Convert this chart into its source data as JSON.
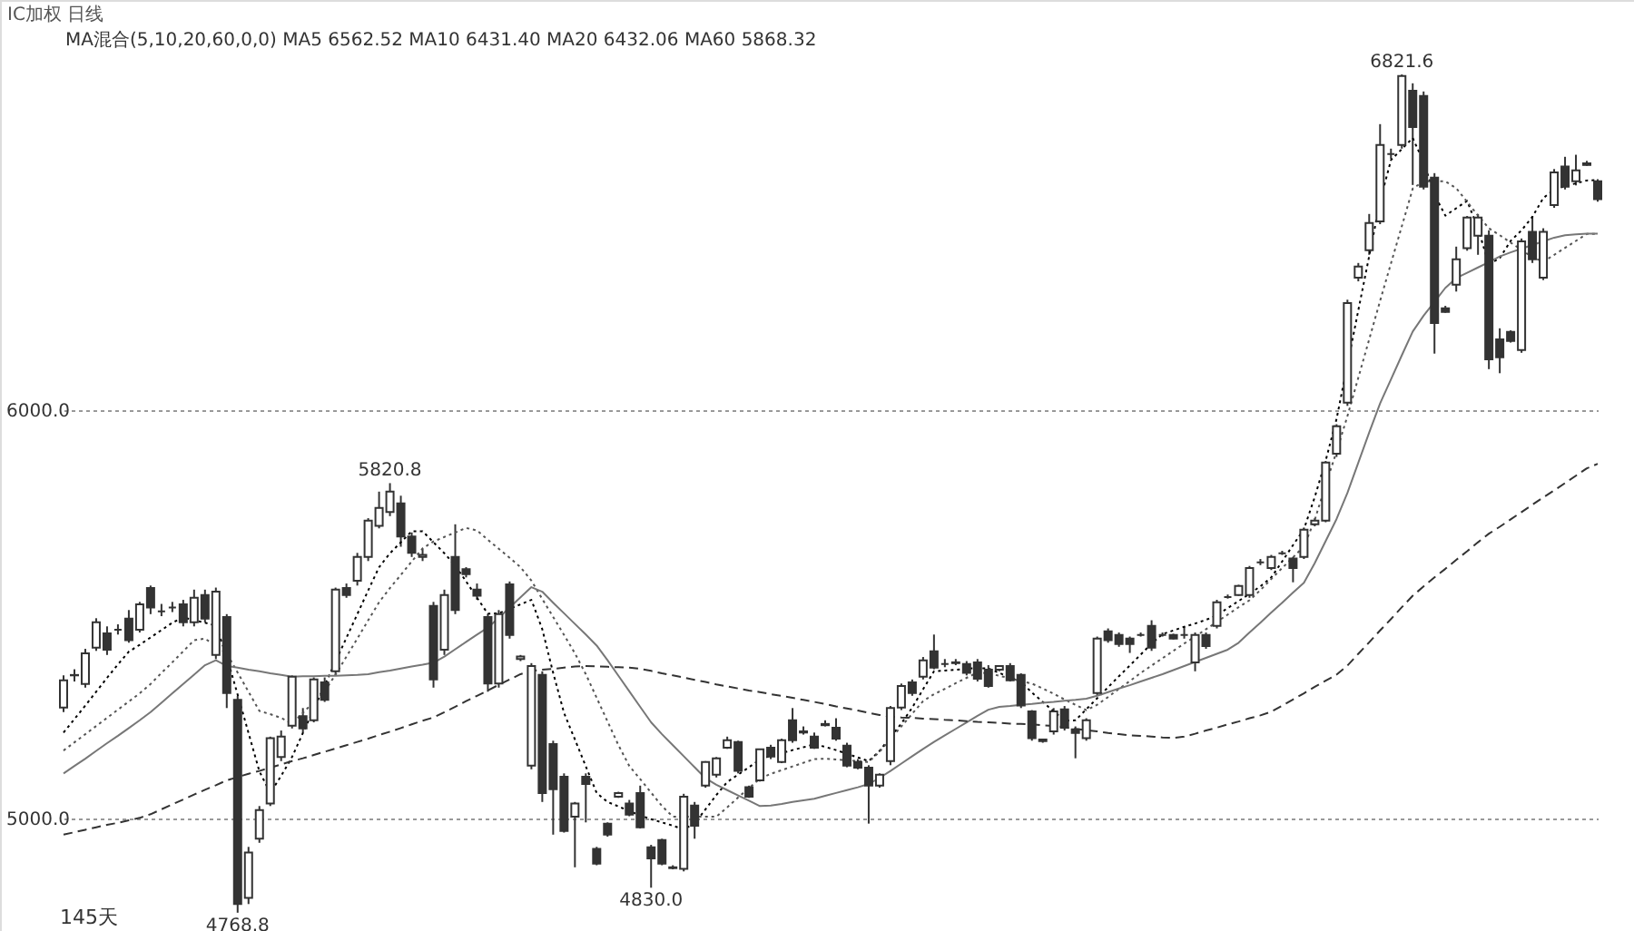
{
  "chart_data": {
    "type": "candlestick",
    "title": "IC加权 日线",
    "subtitle": "MA混合(5,10,20,60,0,0) MA5 6562.52 MA10 6431.40 MA20 6432.06 MA60 5868.32",
    "categories": [
      null,
      null,
      null,
      null,
      null,
      null,
      null,
      null,
      null,
      null,
      null,
      null,
      null,
      null,
      null,
      null,
      null,
      null,
      null,
      null,
      null,
      null,
      null,
      null,
      null,
      null,
      null,
      null,
      null,
      null,
      null,
      null,
      null,
      null,
      null,
      null,
      null,
      null,
      null,
      null,
      null,
      null,
      null,
      null,
      null,
      null,
      null,
      null,
      null,
      null,
      null,
      null,
      null,
      null,
      null,
      null,
      null,
      null,
      null,
      null,
      null,
      null,
      null,
      null,
      null,
      null,
      null,
      null,
      null,
      null,
      null,
      null,
      null,
      null,
      null,
      null,
      null,
      null,
      null,
      null,
      null,
      null,
      null,
      null,
      null,
      null,
      null,
      null,
      null,
      null,
      null,
      null,
      null,
      null,
      null,
      null,
      null,
      null,
      null,
      null,
      null,
      null,
      null,
      null,
      null,
      null,
      null,
      null,
      null,
      null,
      null,
      null,
      null,
      null,
      null,
      null,
      null,
      null,
      null,
      null,
      null,
      null,
      null,
      null,
      null,
      null,
      null,
      null,
      null,
      null,
      null,
      null,
      null,
      null,
      null,
      null,
      null,
      null,
      null,
      null,
      null,
      null
    ],
    "ohlc": [
      [
        5271,
        5350,
        5260,
        5338
      ],
      [
        5350,
        5365,
        5335,
        5351
      ],
      [
        5329,
        5415,
        5320,
        5404
      ],
      [
        5418,
        5490,
        5410,
        5480
      ],
      [
        5453,
        5470,
        5400,
        5413
      ],
      [
        5462,
        5475,
        5450,
        5462
      ],
      [
        5489,
        5510,
        5430,
        5436
      ],
      [
        5462,
        5530,
        5455,
        5524
      ],
      [
        5564,
        5570,
        5500,
        5516
      ],
      [
        5507,
        5525,
        5495,
        5507
      ],
      [
        5516,
        5530,
        5505,
        5516
      ],
      [
        5524,
        5535,
        5470,
        5480
      ],
      [
        5480,
        5560,
        5470,
        5540
      ],
      [
        5547,
        5560,
        5480,
        5489
      ],
      [
        5400,
        5565,
        5390,
        5555
      ],
      [
        5493,
        5500,
        5270,
        5307
      ],
      [
        5290,
        5300,
        4768.8,
        4790
      ],
      [
        4805,
        4930,
        4790,
        4916
      ],
      [
        4950,
        5030,
        4940,
        5020
      ],
      [
        5036,
        5200,
        5030,
        5196
      ],
      [
        5150,
        5215,
        5140,
        5200
      ],
      [
        5227,
        5350,
        5220,
        5347
      ],
      [
        5250,
        5270,
        5210,
        5220
      ],
      [
        5240,
        5345,
        5235,
        5340
      ],
      [
        5333,
        5345,
        5285,
        5290
      ],
      [
        5360,
        5565,
        5350,
        5560
      ],
      [
        5564,
        5575,
        5540,
        5547
      ],
      [
        5582,
        5650,
        5570,
        5640
      ],
      [
        5640,
        5735,
        5630,
        5729
      ],
      [
        5716,
        5800,
        5710,
        5760
      ],
      [
        5750,
        5820.8,
        5740,
        5800
      ],
      [
        5771,
        5790,
        5665,
        5690
      ],
      [
        5690,
        5700,
        5640,
        5650
      ],
      [
        5640,
        5660,
        5630,
        5645
      ],
      [
        5520,
        5530,
        5320,
        5340
      ],
      [
        5413,
        5560,
        5400,
        5547
      ],
      [
        5640,
        5720,
        5500,
        5510
      ],
      [
        5610,
        5615,
        5590,
        5598
      ],
      [
        5560,
        5575,
        5535,
        5545
      ],
      [
        5493,
        5500,
        5310,
        5330
      ],
      [
        5330,
        5510,
        5320,
        5500
      ],
      [
        5573,
        5580,
        5440,
        5449
      ],
      [
        5390,
        5400,
        5385,
        5396
      ],
      [
        5129,
        5380,
        5120,
        5373
      ],
      [
        5351,
        5360,
        5040,
        5062
      ],
      [
        5182,
        5190,
        4960,
        5071
      ],
      [
        5102,
        5110,
        4965,
        4969
      ],
      [
        5004,
        5040,
        4880,
        5036
      ],
      [
        5102,
        5110,
        4990,
        5084
      ],
      [
        4925,
        4930,
        4885,
        4889
      ],
      [
        4987,
        4990,
        4955,
        4960
      ],
      [
        5053,
        5065,
        5050,
        5062
      ],
      [
        5036,
        5045,
        5005,
        5009
      ],
      [
        5062,
        5080,
        4975,
        4978
      ],
      [
        4929,
        4935,
        4830.0,
        4902
      ],
      [
        4947,
        4950,
        4885,
        4889
      ],
      [
        4880,
        4885,
        4875,
        4878
      ],
      [
        4876,
        5060,
        4870,
        5053
      ],
      [
        5031,
        5040,
        4950,
        4982
      ],
      [
        5080,
        5140,
        5075,
        5138
      ],
      [
        5107,
        5150,
        5100,
        5147
      ],
      [
        5173,
        5200,
        5170,
        5191
      ],
      [
        5187,
        5190,
        5110,
        5116
      ],
      [
        5076,
        5080,
        5050,
        5053
      ],
      [
        5093,
        5170,
        5090,
        5169
      ],
      [
        5173,
        5180,
        5145,
        5151
      ],
      [
        5138,
        5195,
        5135,
        5191
      ],
      [
        5240,
        5270,
        5185,
        5191
      ],
      [
        5210,
        5225,
        5205,
        5213
      ],
      [
        5200,
        5210,
        5170,
        5173
      ],
      [
        5228,
        5240,
        5225,
        5231
      ],
      [
        5222,
        5245,
        5190,
        5195
      ],
      [
        5178,
        5185,
        5125,
        5129
      ],
      [
        5138,
        5145,
        5120,
        5124
      ],
      [
        5124,
        5130,
        4987,
        5080
      ],
      [
        5080,
        5110,
        5075,
        5107
      ],
      [
        5140,
        5275,
        5130,
        5270
      ],
      [
        5271,
        5330,
        5265,
        5324
      ],
      [
        5333,
        5340,
        5300,
        5307
      ],
      [
        5347,
        5395,
        5340,
        5387
      ],
      [
        5409,
        5450,
        5365,
        5369
      ],
      [
        5378,
        5390,
        5370,
        5378
      ],
      [
        5380,
        5390,
        5375,
        5382
      ],
      [
        5378,
        5385,
        5350,
        5356
      ],
      [
        5382,
        5390,
        5335,
        5342
      ],
      [
        5364,
        5375,
        5320,
        5324
      ],
      [
        5364,
        5375,
        5360,
        5373
      ],
      [
        5373,
        5380,
        5335,
        5338
      ],
      [
        5351,
        5355,
        5270,
        5276
      ],
      [
        5262,
        5265,
        5190,
        5196
      ],
      [
        5193,
        5195,
        5185,
        5189
      ],
      [
        5213,
        5270,
        5205,
        5262
      ],
      [
        5267,
        5275,
        5215,
        5222
      ],
      [
        5218,
        5225,
        5147,
        5209
      ],
      [
        5196,
        5245,
        5190,
        5240
      ],
      [
        5307,
        5445,
        5300,
        5440
      ],
      [
        5458,
        5465,
        5430,
        5436
      ],
      [
        5449,
        5455,
        5420,
        5427
      ],
      [
        5440,
        5445,
        5405,
        5427
      ],
      [
        5449,
        5455,
        5445,
        5449
      ],
      [
        5471,
        5485,
        5410,
        5418
      ],
      [
        5449,
        5455,
        5445,
        5449
      ],
      [
        5449,
        5452,
        5438,
        5440
      ],
      [
        5449,
        5470,
        5440,
        5449
      ],
      [
        5382,
        5455,
        5360,
        5449
      ],
      [
        5449,
        5455,
        5415,
        5422
      ],
      [
        5471,
        5535,
        5465,
        5529
      ],
      [
        5542,
        5548,
        5538,
        5542
      ],
      [
        5547,
        5572,
        5545,
        5569
      ],
      [
        5547,
        5618,
        5540,
        5613
      ],
      [
        5627,
        5635,
        5620,
        5627
      ],
      [
        5613,
        5645,
        5608,
        5640
      ],
      [
        5649,
        5655,
        5645,
        5649
      ],
      [
        5636,
        5640,
        5578,
        5613
      ],
      [
        5640,
        5712,
        5635,
        5707
      ],
      [
        5720,
        5735,
        5715,
        5729
      ],
      [
        5729,
        5875,
        5725,
        5871
      ],
      [
        5893,
        5965,
        5885,
        5960
      ],
      [
        6018,
        6270,
        6010,
        6262
      ],
      [
        6324,
        6360,
        6315,
        6351
      ],
      [
        6391,
        6480,
        6380,
        6458
      ],
      [
        6462,
        6700,
        6455,
        6649
      ],
      [
        6627,
        6640,
        6615,
        6627
      ],
      [
        6649,
        6821.6,
        6640,
        6818
      ],
      [
        6782,
        6800,
        6551,
        6693
      ],
      [
        6769,
        6780,
        6540,
        6547
      ],
      [
        6569,
        6580,
        6138,
        6213
      ],
      [
        6249,
        6255,
        6238,
        6240
      ],
      [
        6307,
        6400,
        6290,
        6369
      ],
      [
        6396,
        6475,
        6390,
        6471
      ],
      [
        6427,
        6480,
        6380,
        6471
      ],
      [
        6427,
        6440,
        6100,
        6124
      ],
      [
        6173,
        6200,
        6090,
        6129
      ],
      [
        6191,
        6195,
        6165,
        6169
      ],
      [
        6147,
        6420,
        6140,
        6413
      ],
      [
        6436,
        6475,
        6360,
        6369
      ],
      [
        6324,
        6445,
        6318,
        6436
      ],
      [
        6502,
        6590,
        6495,
        6582
      ],
      [
        6596,
        6620,
        6540,
        6547
      ],
      [
        6560,
        6625,
        6550,
        6587
      ],
      [
        6604,
        6610,
        6598,
        6600
      ],
      [
        6560,
        6565,
        6510,
        6516
      ]
    ],
    "color": "#333333",
    "series": [
      {
        "type": "line",
        "color": "#000000",
        "line_style": "dotted",
        "values": [
          5210,
          5243,
          5276,
          5310,
          5344,
          5377,
          5408,
          5425,
          5443,
          5461,
          5479,
          5492,
          5485,
          5479,
          5472,
          5396,
          5303,
          5209,
          5115,
          5062,
          5104,
          5150,
          5209,
          5267,
          5326,
          5384,
          5442,
          5500,
          5558,
          5615,
          5649,
          5676,
          5703,
          5703,
          5676,
          5649,
          5619,
          5580,
          5540,
          5501,
          5502,
          5513,
          5524,
          5535,
          5463,
          5356,
          5258,
          5193,
          5127,
          5062,
          5040,
          5029,
          5018,
          5007,
          4998,
          4990,
          4982,
          4973,
          4987,
          5022,
          5057,
          5089,
          5107,
          5125,
          5144,
          5153,
          5160,
          5167,
          5174,
          5181,
          5175,
          5167,
          5158,
          5149,
          5140,
          5165,
          5199,
          5232,
          5271,
          5316,
          5360,
          5362,
          5364,
          5366,
          5368,
          5367,
          5356,
          5345,
          5334,
          5308,
          5285,
          5262,
          5239,
          5240,
          5267,
          5294,
          5321,
          5348,
          5374,
          5401,
          5428,
          5451,
          5460,
          5469,
          5477,
          5486,
          5497,
          5515,
          5532,
          5550,
          5568,
          5590,
          5629,
          5669,
          5708,
          5787,
          5876,
          5978,
          6111,
          6244,
          6377,
          6511,
          6612,
          6639,
          6666,
          6607,
          6527,
          6476,
          6494,
          6512,
          6445,
          6356,
          6372,
          6414,
          6440,
          6473,
          6519,
          6540,
          6548,
          6555,
          6562,
          6563
        ]
      },
      {
        "type": "line",
        "color": "#555555",
        "line_style": "dotted",
        "values": [
          5166,
          5186,
          5206,
          5226,
          5246,
          5266,
          5286,
          5306,
          5329,
          5356,
          5382,
          5409,
          5436,
          5440,
          5422,
          5404,
          5357,
          5310,
          5263,
          5255,
          5246,
          5232,
          5258,
          5285,
          5311,
          5352,
          5396,
          5440,
          5485,
          5529,
          5564,
          5596,
          5629,
          5661,
          5678,
          5689,
          5700,
          5711,
          5705,
          5682,
          5660,
          5638,
          5615,
          5582,
          5537,
          5493,
          5449,
          5404,
          5353,
          5295,
          5237,
          5179,
          5128,
          5096,
          5063,
          5030,
          5004,
          5004,
          5004,
          5004,
          5004,
          5027,
          5051,
          5074,
          5097,
          5109,
          5118,
          5127,
          5136,
          5145,
          5146,
          5144,
          5142,
          5140,
          5138,
          5163,
          5194,
          5225,
          5256,
          5287,
          5304,
          5317,
          5331,
          5344,
          5357,
          5355,
          5349,
          5343,
          5336,
          5330,
          5318,
          5305,
          5291,
          5278,
          5265,
          5278,
          5297,
          5317,
          5336,
          5356,
          5374,
          5392,
          5410,
          5428,
          5445,
          5463,
          5481,
          5499,
          5517,
          5534,
          5559,
          5586,
          5613,
          5639,
          5666,
          5731,
          5817,
          5898,
          5985,
          6079,
          6173,
          6267,
          6359,
          6450,
          6542,
          6560,
          6560,
          6560,
          6543,
          6510,
          6476,
          6445,
          6428,
          6410,
          6392,
          6374,
          6363,
          6380,
          6397,
          6414,
          6431,
          6431
        ]
      },
      {
        "type": "line",
        "color": "#777777",
        "line_style": "solid",
        "values": [
          5110,
          5128,
          5146,
          5165,
          5184,
          5202,
          5221,
          5240,
          5260,
          5283,
          5306,
          5329,
          5352,
          5375,
          5387,
          5373,
          5369,
          5364,
          5360,
          5355,
          5351,
          5347,
          5348,
          5348,
          5349,
          5349,
          5350,
          5351,
          5353,
          5358,
          5362,
          5367,
          5372,
          5376,
          5381,
          5396,
          5414,
          5432,
          5450,
          5467,
          5491,
          5516,
          5541,
          5566,
          5555,
          5528,
          5502,
          5476,
          5450,
          5423,
          5387,
          5349,
          5311,
          5273,
          5235,
          5206,
          5179,
          5152,
          5125,
          5098,
          5082,
          5069,
          5056,
          5043,
          5030,
          5031,
          5035,
          5040,
          5044,
          5048,
          5055,
          5062,
          5069,
          5076,
          5084,
          5099,
          5116,
          5134,
          5152,
          5170,
          5187,
          5203,
          5219,
          5235,
          5251,
          5266,
          5273,
          5275,
          5278,
          5280,
          5283,
          5285,
          5288,
          5290,
          5293,
          5300,
          5309,
          5318,
          5326,
          5335,
          5344,
          5353,
          5363,
          5373,
          5383,
          5393,
          5403,
          5413,
          5430,
          5455,
          5479,
          5504,
          5528,
          5553,
          5577,
          5625,
          5679,
          5733,
          5797,
          5871,
          5945,
          6016,
          6075,
          6134,
          6192,
          6231,
          6265,
          6299,
          6323,
          6336,
          6349,
          6362,
          6376,
          6386,
          6395,
          6404,
          6413,
          6422,
          6428,
          6430,
          6432,
          6432
        ]
      },
      {
        "type": "line",
        "color": "#333333",
        "line_style": "dashed",
        "values": [
          4960,
          4966,
          4972,
          4978,
          4984,
          4989,
          4995,
          5001,
          5010,
          5022,
          5034,
          5046,
          5058,
          5070,
          5081,
          5093,
          5101,
          5109,
          5116,
          5124,
          5132,
          5140,
          5147,
          5155,
          5163,
          5171,
          5179,
          5187,
          5195,
          5204,
          5212,
          5221,
          5230,
          5239,
          5247,
          5260,
          5273,
          5287,
          5300,
          5313,
          5327,
          5340,
          5353,
          5361,
          5364,
          5366,
          5369,
          5372,
          5373,
          5372,
          5371,
          5370,
          5369,
          5366,
          5361,
          5355,
          5350,
          5345,
          5339,
          5334,
          5328,
          5323,
          5318,
          5313,
          5309,
          5304,
          5300,
          5295,
          5290,
          5285,
          5280,
          5274,
          5269,
          5264,
          5258,
          5253,
          5249,
          5247,
          5246,
          5244,
          5243,
          5241,
          5240,
          5238,
          5236,
          5235,
          5234,
          5232,
          5231,
          5230,
          5228,
          5226,
          5223,
          5219,
          5216,
          5213,
          5209,
          5206,
          5203,
          5202,
          5200,
          5198,
          5197,
          5200,
          5207,
          5215,
          5222,
          5230,
          5237,
          5245,
          5252,
          5261,
          5276,
          5291,
          5306,
          5322,
          5337,
          5352,
          5374,
          5403,
          5431,
          5460,
          5488,
          5517,
          5545,
          5568,
          5590,
          5611,
          5633,
          5654,
          5676,
          5697,
          5714,
          5732,
          5750,
          5768,
          5786,
          5803,
          5821,
          5839,
          5857,
          5868
        ]
      }
    ],
    "ylim": [
      4724,
      7004
    ],
    "yticks": [
      {
        "value": 5000,
        "label": "5000.0"
      },
      {
        "value": 6000,
        "label": "6000.0"
      }
    ],
    "tick_labels": "y",
    "grid": "y",
    "annotations": [
      {
        "text": "5820.8",
        "y": 5820.8
      },
      {
        "text": "4768.8",
        "y": 4768.8
      },
      {
        "text": "4830.0",
        "y": 4830.0
      },
      {
        "text": "6821.6",
        "y": 6821.6
      },
      "145天"
    ]
  }
}
